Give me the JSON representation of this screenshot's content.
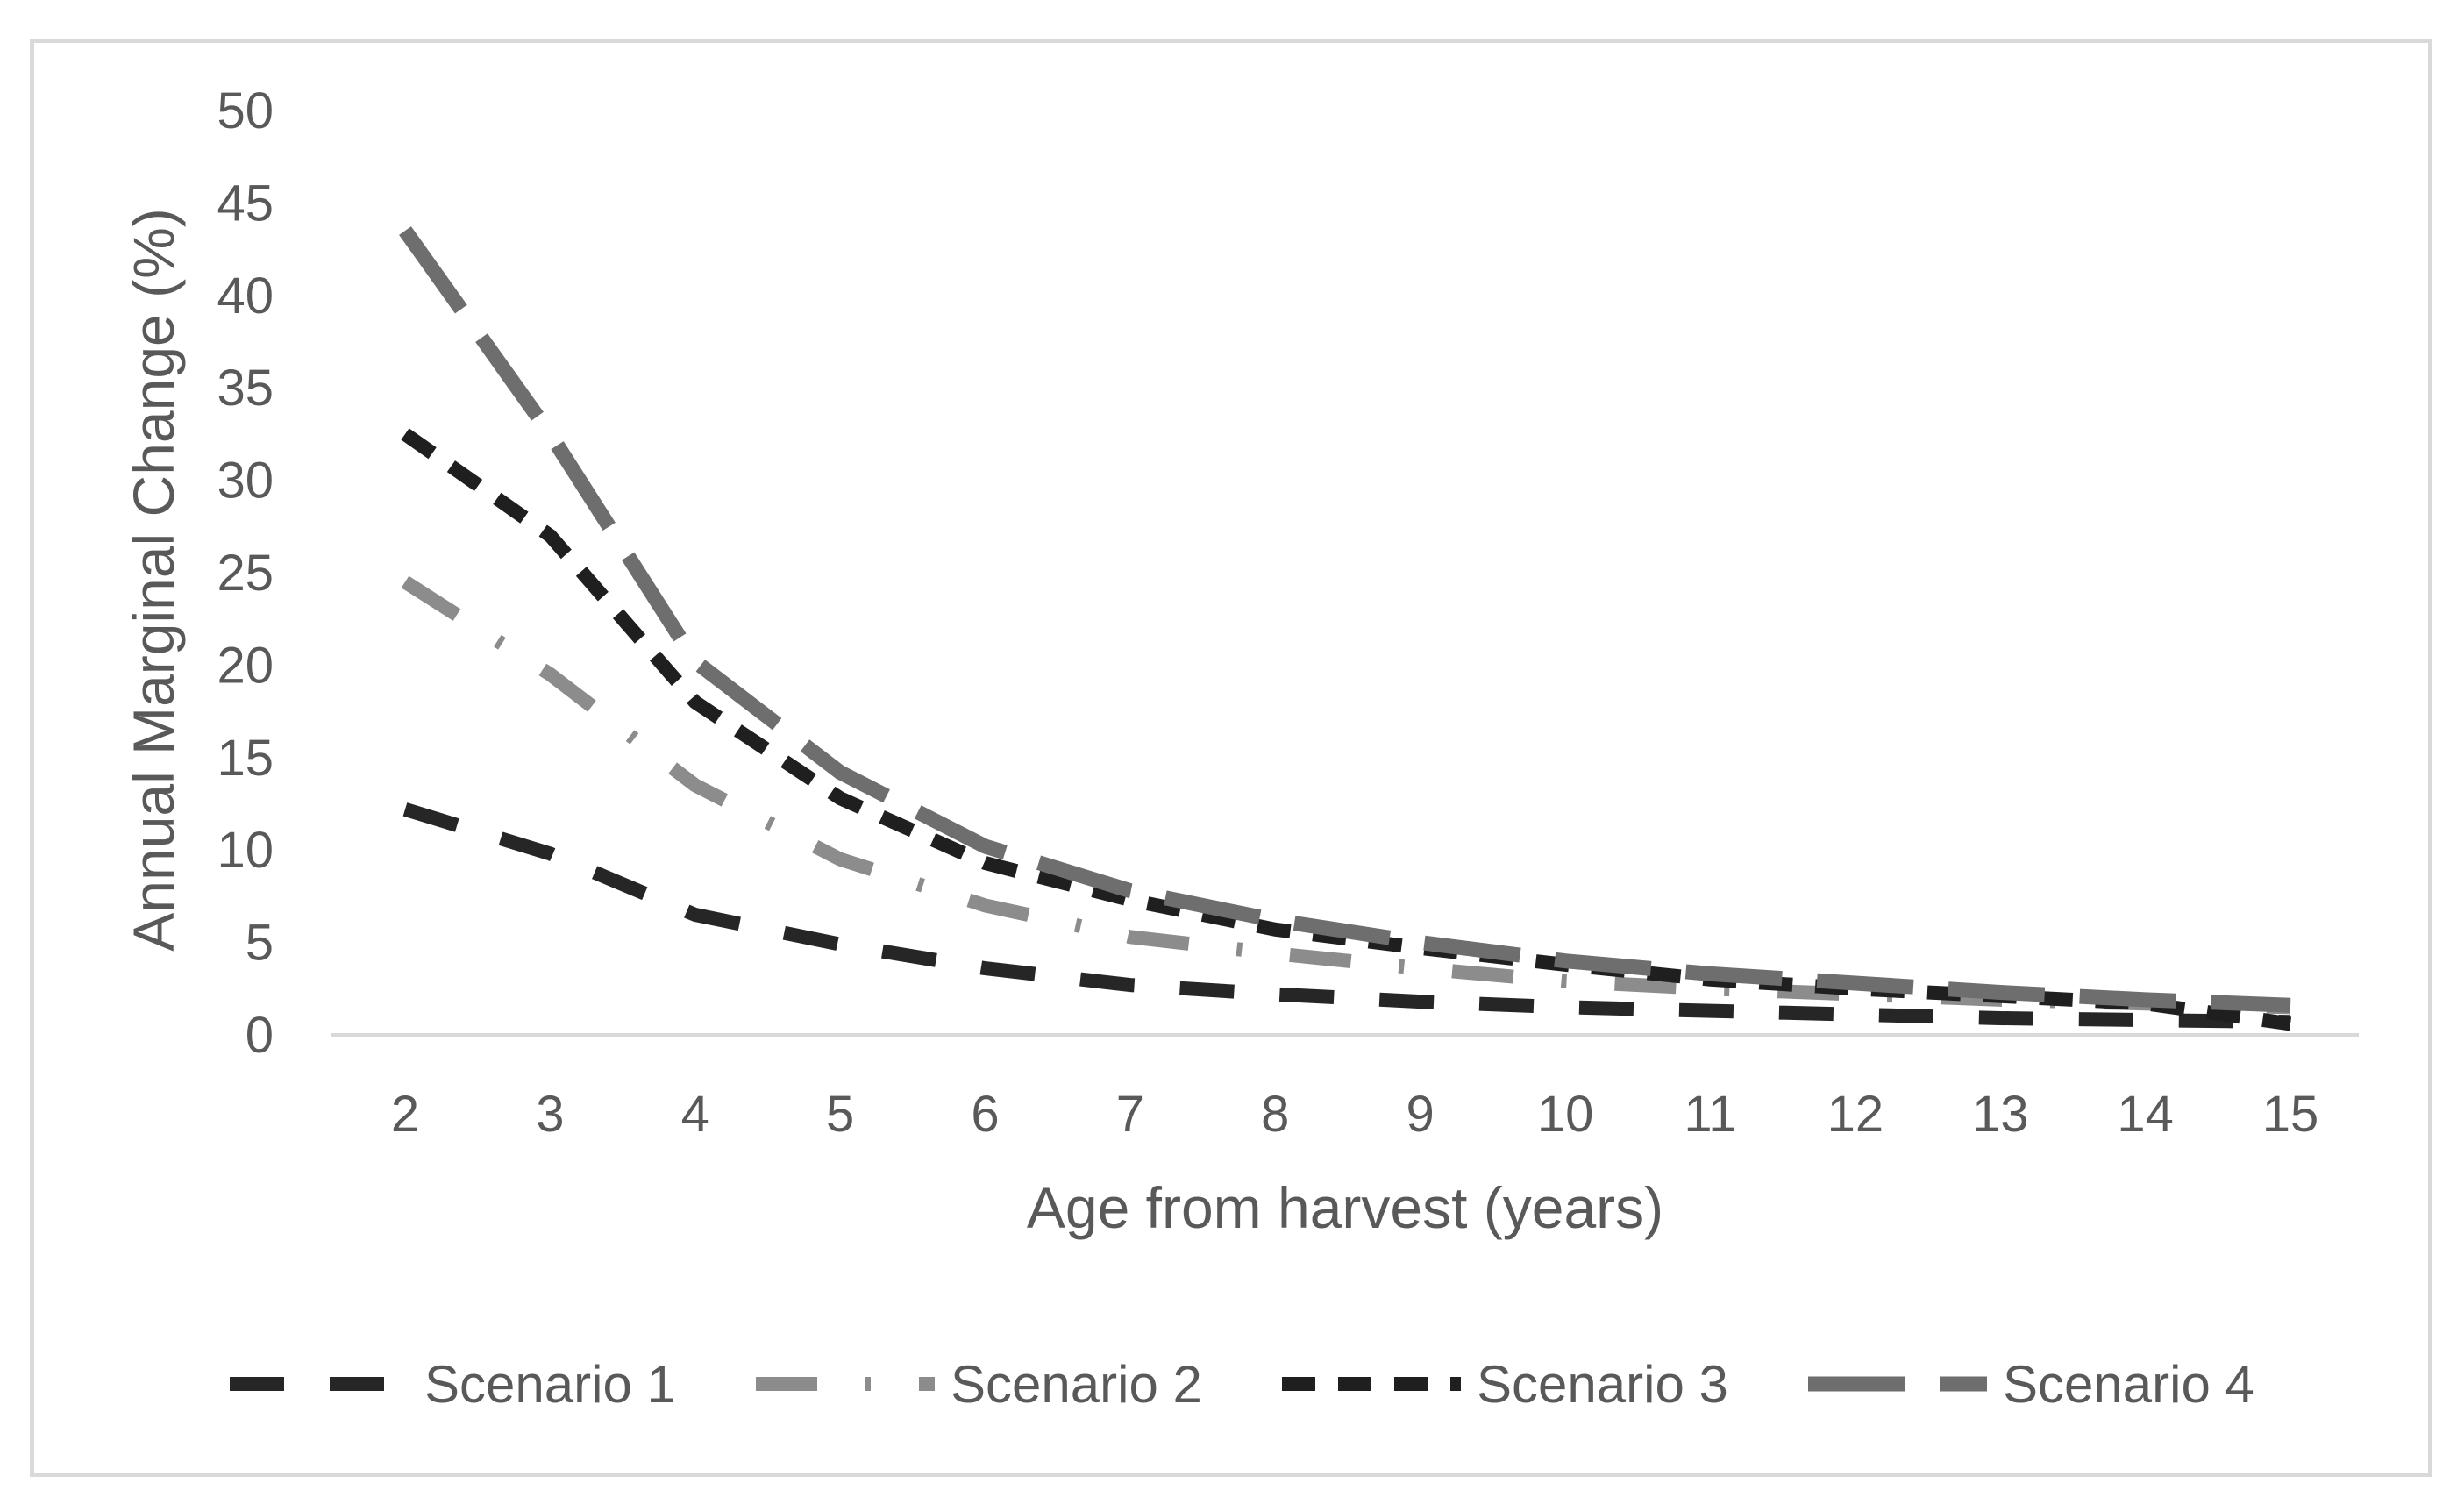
{
  "chart_data": {
    "type": "line",
    "title": "",
    "xlabel": "Age from harvest (years)",
    "ylabel": "Annual Marginal Change (%)",
    "x": [
      2,
      3,
      4,
      5,
      6,
      7,
      8,
      9,
      10,
      11,
      12,
      13,
      14,
      15
    ],
    "ylim": [
      0,
      50
    ],
    "yticks": [
      0,
      5,
      10,
      15,
      20,
      25,
      30,
      35,
      40,
      45,
      50
    ],
    "grid": false,
    "legend_position": "bottom",
    "series": [
      {
        "name": "Scenario 1",
        "style": "dash",
        "color": "#262626",
        "values": [
          12.2,
          9.8,
          6.5,
          4.9,
          3.6,
          2.7,
          2.2,
          1.8,
          1.5,
          1.3,
          1.1,
          0.9,
          0.8,
          0.7
        ]
      },
      {
        "name": "Scenario 2",
        "style": "dash-dot",
        "color": "#8c8c8c",
        "values": [
          24.5,
          19.5,
          13.5,
          9.5,
          7.0,
          5.3,
          4.4,
          3.6,
          2.9,
          2.5,
          2.2,
          1.9,
          1.7,
          1.5
        ]
      },
      {
        "name": "Scenario 3",
        "style": "short-dash",
        "color": "#1f1f1f",
        "values": [
          32.5,
          27.0,
          18.0,
          12.8,
          9.3,
          7.3,
          5.7,
          4.7,
          3.8,
          3.0,
          2.5,
          2.1,
          1.7,
          0.6
        ]
      },
      {
        "name": "Scenario 4",
        "style": "long-dash",
        "color": "#6e6e6e",
        "values": [
          43.5,
          32.5,
          20.2,
          14.2,
          10.2,
          7.8,
          6.2,
          5.0,
          4.0,
          3.3,
          2.8,
          2.3,
          1.9,
          1.6
        ]
      }
    ]
  }
}
